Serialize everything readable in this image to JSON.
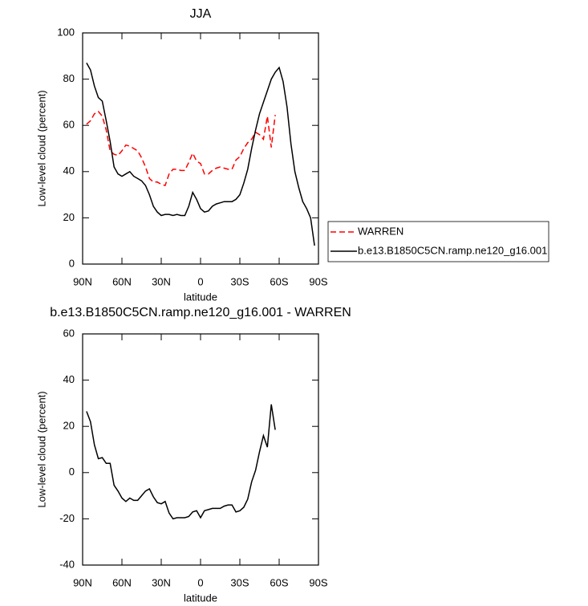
{
  "chart_data": [
    {
      "type": "line",
      "title": "JJA",
      "xlabel": "latitude",
      "ylabel": "Low-level cloud (percent)",
      "x": [
        87,
        84,
        81,
        78,
        75,
        72,
        69,
        66,
        63,
        60,
        57,
        54,
        51,
        48,
        45,
        42,
        39,
        36,
        33,
        30,
        27,
        24,
        21,
        18,
        15,
        12,
        9,
        6,
        3,
        0,
        -3,
        -6,
        -9,
        -12,
        -15,
        -18,
        -21,
        -24,
        -27,
        -30,
        -33,
        -36,
        -39,
        -42,
        -45,
        -48,
        -51,
        -54,
        -57,
        -60,
        -63,
        -66,
        -69,
        -72,
        -75,
        -78,
        -81,
        -84,
        -87
      ],
      "xlim": [
        90,
        -90
      ],
      "xticks": [
        {
          "value": 90,
          "label": "90N"
        },
        {
          "value": 60,
          "label": "60N"
        },
        {
          "value": 30,
          "label": "30N"
        },
        0,
        {
          "value": -30,
          "label": "30S"
        },
        {
          "value": -60,
          "label": "60S"
        },
        {
          "value": -90,
          "label": "90S"
        }
      ],
      "ylim": [
        0,
        100
      ],
      "yticks": [
        0,
        20,
        40,
        60,
        80,
        100
      ],
      "legend": "right",
      "series": [
        {
          "name": "WARREN",
          "color": "#ff0000",
          "dashed": true,
          "values": [
            60.5,
            62,
            65,
            66,
            64,
            58,
            49,
            47.5,
            47,
            49,
            51.5,
            51,
            50,
            49,
            46,
            42,
            37,
            35.5,
            35.5,
            34.5,
            34,
            39,
            41,
            41,
            40.5,
            40.5,
            44,
            48,
            44.5,
            43.5,
            39,
            39,
            40.5,
            41.5,
            42,
            41.5,
            41,
            41,
            45,
            46.5,
            50,
            52.5,
            54,
            57,
            56,
            54,
            64,
            50.5,
            64.5,
            null,
            null,
            null,
            null,
            null,
            null,
            null,
            null,
            null,
            null
          ]
        },
        {
          "name": "b.e13.B1850C5CN.ramp.ne120_g16.001",
          "color": "#000000",
          "dashed": false,
          "values": [
            87,
            84,
            77,
            72,
            70.5,
            62,
            53,
            42,
            39,
            38,
            39,
            40,
            38,
            37,
            36,
            34,
            30,
            25,
            22.5,
            21,
            21.5,
            21.5,
            21,
            21.5,
            21,
            21,
            25,
            31,
            28,
            24,
            22.5,
            23,
            25,
            26,
            26.5,
            27,
            27,
            27,
            28,
            30,
            35,
            41,
            50,
            58,
            65,
            70,
            75,
            80,
            83,
            85,
            79,
            68,
            52,
            40,
            33,
            27,
            24,
            20,
            8
          ]
        }
      ]
    },
    {
      "type": "line",
      "title": "b.e13.B1850C5CN.ramp.ne120_g16.001 - WARREN",
      "xlabel": "latitude",
      "ylabel": "Low-level cloud (percent)",
      "x": [
        87,
        84,
        81,
        78,
        75,
        72,
        69,
        66,
        63,
        60,
        57,
        54,
        51,
        48,
        45,
        42,
        39,
        36,
        33,
        30,
        27,
        24,
        21,
        18,
        15,
        12,
        9,
        6,
        3,
        0,
        -3,
        -6,
        -9,
        -12,
        -15,
        -18,
        -21,
        -24,
        -27,
        -30,
        -33,
        -36,
        -39,
        -42,
        -45,
        -48,
        -51,
        -54,
        -57,
        -60,
        -63,
        -66,
        -69,
        -72,
        -75,
        -78,
        -81,
        -84,
        -87
      ],
      "xlim": [
        90,
        -90
      ],
      "xticks": [
        {
          "value": 90,
          "label": "90N"
        },
        {
          "value": 60,
          "label": "60N"
        },
        {
          "value": 30,
          "label": "30N"
        },
        0,
        {
          "value": -30,
          "label": "30S"
        },
        {
          "value": -60,
          "label": "60S"
        },
        {
          "value": -90,
          "label": "90S"
        }
      ],
      "ylim": [
        -40,
        60
      ],
      "yticks": [
        -40,
        -20,
        0,
        20,
        40,
        60
      ],
      "series": [
        {
          "color": "#000000",
          "dashed": false,
          "values": [
            26.5,
            22,
            12,
            6,
            6.5,
            4,
            4,
            -5.5,
            -8,
            -11,
            -12.5,
            -11,
            -12,
            -12,
            -10,
            -8,
            -7,
            -10.5,
            -13,
            -13.5,
            -12.5,
            -17.5,
            -20,
            -19.5,
            -19.5,
            -19.5,
            -19,
            -17,
            -16.5,
            -19.5,
            -16.5,
            -16,
            -15.5,
            -15.5,
            -15.5,
            -14.5,
            -14,
            -14,
            -17,
            -16.5,
            -15,
            -11.5,
            -4,
            1,
            9,
            16,
            11,
            29.5,
            18.5,
            null,
            null,
            null,
            null,
            null,
            null,
            null,
            null,
            null,
            null
          ]
        }
      ]
    }
  ]
}
